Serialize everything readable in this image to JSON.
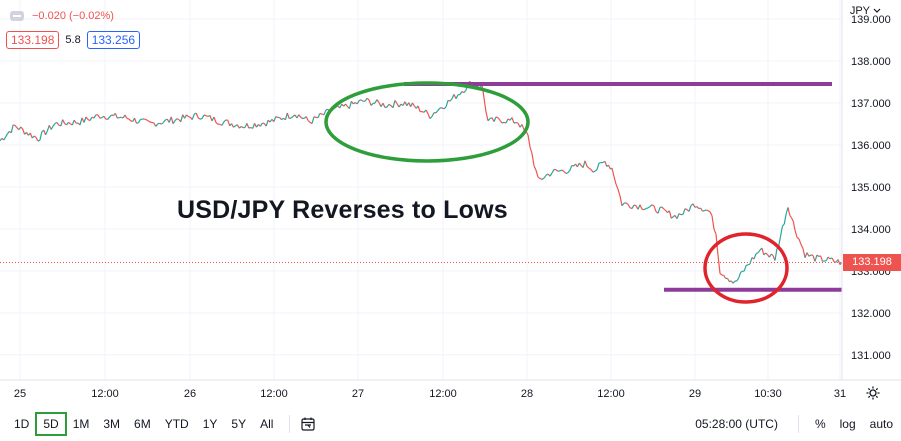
{
  "header": {
    "change": "−0.020 (−0.02%)",
    "bid": "133.198",
    "spread": "5.8",
    "ask": "133.256",
    "currency": "JPY"
  },
  "annotation": {
    "headline": "USD/JPY Reverses to Lows",
    "resistance_level": 137.45,
    "support_level": 132.55,
    "line_color": "#8e3c9a",
    "circle_top_color": "#2e9e3a",
    "circle_bottom_color": "#e0242b"
  },
  "bottom": {
    "ranges": [
      "1D",
      "5D",
      "1M",
      "3M",
      "6M",
      "YTD",
      "1Y",
      "5Y",
      "All"
    ],
    "active_range": "5D",
    "time": "05:28:00 (UTC)",
    "percent": "%",
    "log": "log",
    "auto": "auto"
  },
  "chart_data": {
    "type": "line",
    "symbol": "USD/JPY",
    "ylim": [
      130.4,
      139.45
    ],
    "y_ticks": [
      "139.000",
      "138.000",
      "137.000",
      "136.000",
      "135.000",
      "134.000",
      "133.000",
      "132.000",
      "131.000"
    ],
    "x_ticks": [
      "25",
      "12:00",
      "26",
      "12:00",
      "27",
      "12:00",
      "28",
      "12:00",
      "29",
      "10:30",
      "31"
    ],
    "last_price": "133.198",
    "series": [
      {
        "values": [
          136.1,
          136.45,
          136.15,
          136.5,
          136.55,
          136.7,
          136.65,
          136.5,
          136.6,
          136.7,
          136.55,
          136.45,
          136.55,
          136.75,
          136.55,
          136.8,
          137.05,
          136.95,
          137.0,
          136.85,
          136.7,
          137.05,
          137.45,
          137.4,
          136.55,
          136.6,
          136.55,
          136.2,
          135.15,
          135.35,
          135.4,
          135.55,
          135.4,
          135.6,
          135.45,
          134.6,
          134.55,
          134.45,
          134.3,
          134.4,
          134.6,
          134.4,
          133.9,
          133.0,
          132.7,
          133.15,
          133.5,
          133.3,
          134.55,
          134.0,
          133.4,
          133.3,
          133.25,
          133.2
        ]
      }
    ]
  }
}
